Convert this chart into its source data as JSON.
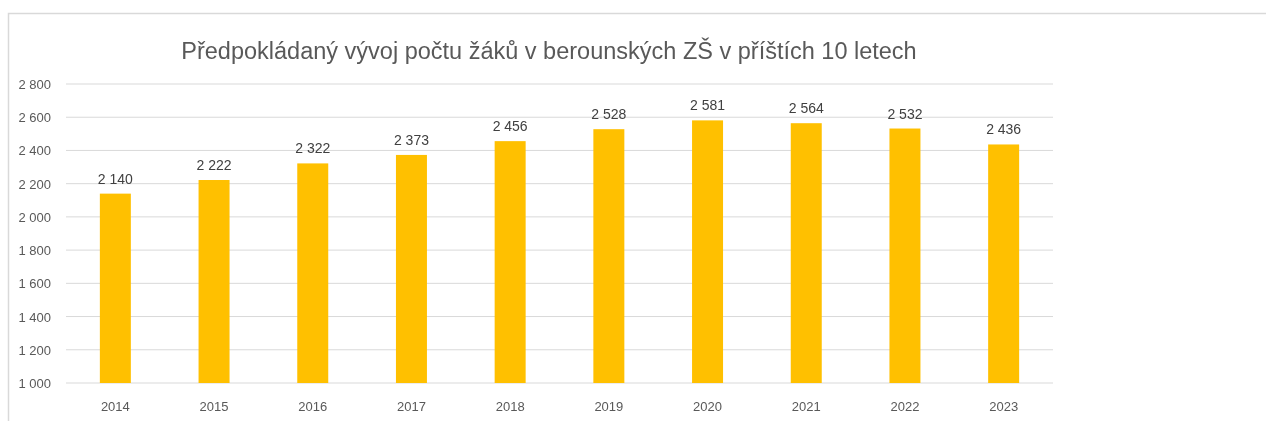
{
  "chart_data": {
    "type": "bar",
    "title": "Předpokládaný vývoj počtu žáků v berounských ZŠ v příštích 10 letech",
    "categories": [
      "2014",
      "2015",
      "2016",
      "2017",
      "2018",
      "2019",
      "2020",
      "2021",
      "2022",
      "2023"
    ],
    "values": [
      2140,
      2222,
      2322,
      2373,
      2456,
      2528,
      2581,
      2564,
      2532,
      2436
    ],
    "value_labels": [
      "2 140",
      "2 222",
      "2 322",
      "2 373",
      "2 456",
      "2 528",
      "2 581",
      "2 564",
      "2 532",
      "2 436"
    ],
    "color": "#ffc000",
    "ylim": [
      1000,
      2800
    ],
    "yticks": [
      {
        "value": 1000,
        "label": "1 000"
      },
      {
        "value": 1200,
        "label": "1 200"
      },
      {
        "value": 1400,
        "label": "1 400"
      },
      {
        "value": 1600,
        "label": "1 600"
      },
      {
        "value": 1800,
        "label": "1 800"
      },
      {
        "value": 2000,
        "label": "2 000"
      },
      {
        "value": 2200,
        "label": "2 200"
      },
      {
        "value": 2400,
        "label": "2 400"
      },
      {
        "value": 2600,
        "label": "2 600"
      },
      {
        "value": 2800,
        "label": "2 800"
      }
    ],
    "grid": "y"
  }
}
